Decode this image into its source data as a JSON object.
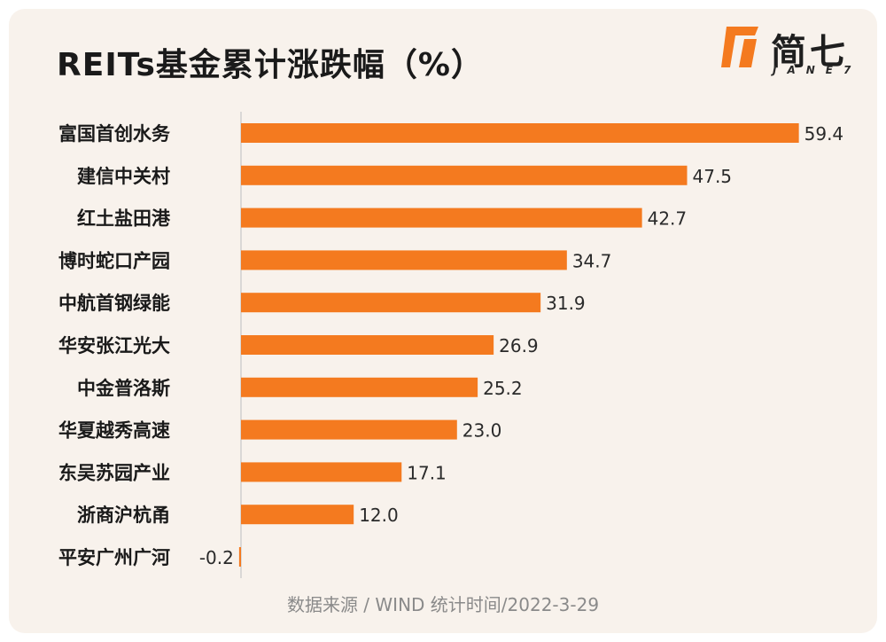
{
  "header": {
    "title": "REITs基金累计涨跌幅（%）"
  },
  "logo": {
    "text_cn": "简七",
    "text_en": "JANE7",
    "accent_color": "#f47a1f"
  },
  "footer": {
    "source_text": "数据来源 / WIND   统计时间/2022-3-29"
  },
  "chart_data": {
    "type": "bar",
    "orientation": "horizontal",
    "title": "REITs基金累计涨跌幅（%）",
    "categories": [
      "富国首创水务",
      "建信中关村",
      "红土盐田港",
      "博时蛇口产园",
      "中航首钢绿能",
      "华安张江光大",
      "中金普洛斯",
      "华夏越秀高速",
      "东吴苏园产业",
      "浙商沪杭甬",
      "平安广州广河"
    ],
    "value_labels": [
      "59.4",
      "47.5",
      "42.7",
      "34.7",
      "31.9",
      "26.9",
      "25.2",
      "23.0",
      "17.1",
      "12.0",
      "-0.2"
    ],
    "values": [
      59.4,
      47.5,
      42.7,
      34.7,
      31.9,
      26.9,
      25.2,
      23.0,
      17.1,
      12.0,
      -0.2
    ],
    "bar_color": "#f47a1f",
    "axis_color": "#cfcfcf",
    "grid": false,
    "legend": "none"
  }
}
